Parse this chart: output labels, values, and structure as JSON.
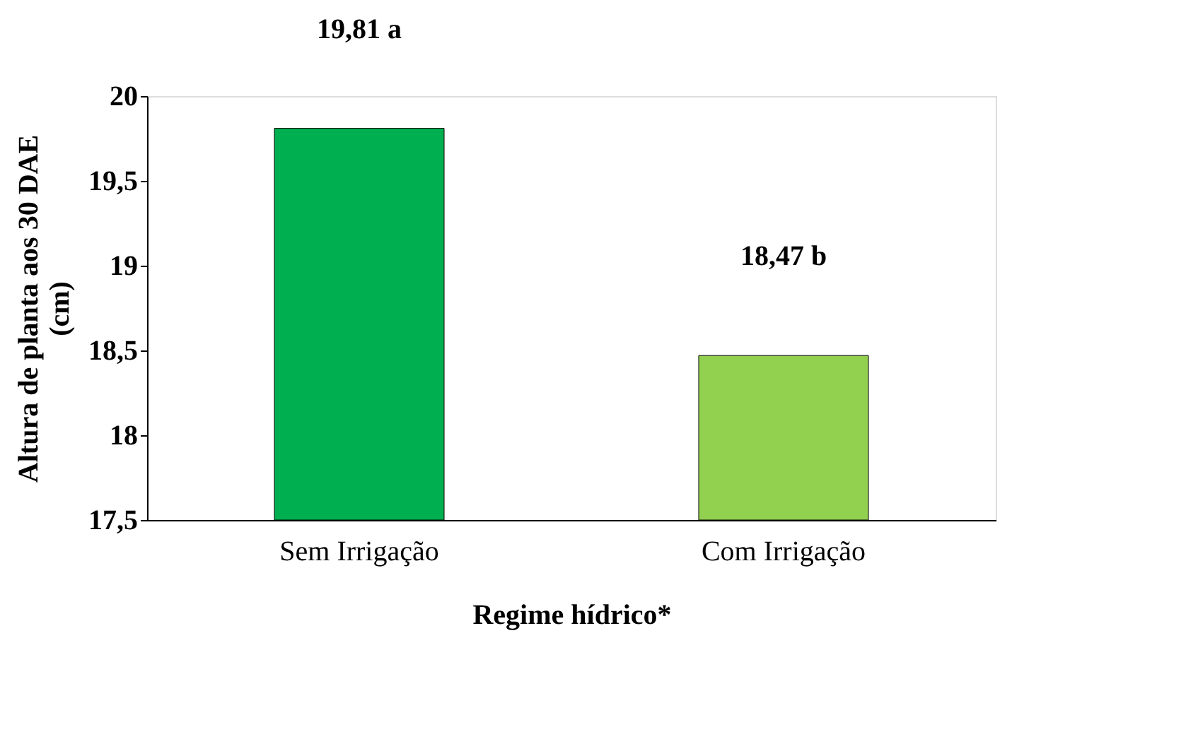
{
  "chart_data": {
    "type": "bar",
    "xlabel": "Regime hídrico*",
    "ylabel": "Altura de planta aos 30 DAE\n(cm)",
    "categories": [
      "Sem Irrigação",
      "Com Irrigação"
    ],
    "values": [
      19.81,
      18.47
    ],
    "colors": [
      "#00b050",
      "#92d050"
    ],
    "value_labels": [
      "19,81 a",
      "18,47 b"
    ],
    "ylim": [
      17.5,
      20
    ],
    "yticks": [
      {
        "value": 17.5,
        "label": "17,5"
      },
      18,
      {
        "value": 18.5,
        "label": "18,5"
      },
      19,
      {
        "value": 19.5,
        "label": "19,5"
      },
      20
    ],
    "grid": false,
    "legend": false
  }
}
